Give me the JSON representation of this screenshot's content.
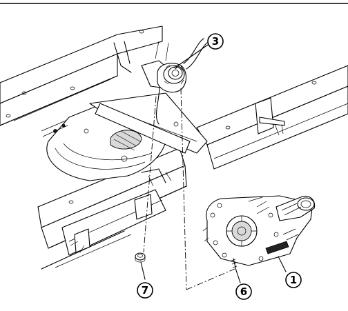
{
  "figure": {
    "callouts": [
      {
        "id": "callout-1",
        "label": "1"
      },
      {
        "id": "callout-3",
        "label": "3"
      },
      {
        "id": "callout-6",
        "label": "6"
      },
      {
        "id": "callout-7",
        "label": "7"
      }
    ]
  }
}
